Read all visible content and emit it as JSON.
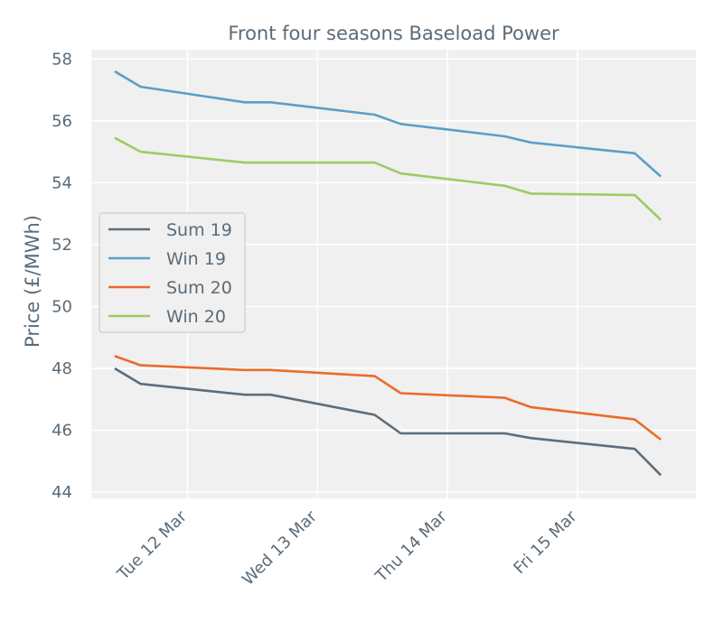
{
  "chart_data": {
    "type": "line",
    "title": "Front four seasons Baseload Power",
    "xlabel": "",
    "ylabel": "Price (£/MWh)",
    "ylim": [
      43.8,
      58.3
    ],
    "yticks": [
      44,
      46,
      48,
      50,
      52,
      54,
      56,
      58
    ],
    "xlim": [
      -0.18,
      4.47
    ],
    "xticks": [
      {
        "pos": 0.56,
        "label": "Tue 12 Mar"
      },
      {
        "pos": 1.56,
        "label": "Wed 13 Mar"
      },
      {
        "pos": 2.56,
        "label": "Thu 14 Mar"
      },
      {
        "pos": 3.56,
        "label": "Fri 15 Mar"
      }
    ],
    "x": [
      0,
      0.2,
      1.0,
      1.2,
      2.0,
      2.2,
      3.0,
      3.2,
      4.0,
      4.2
    ],
    "grid": true,
    "legend_position": "center-left",
    "series": [
      {
        "name": "Sum 19",
        "color": "#5d6d7b",
        "values": [
          48.0,
          47.5,
          47.15,
          47.15,
          46.5,
          45.9,
          45.9,
          45.75,
          45.4,
          44.55
        ]
      },
      {
        "name": "Win 19",
        "color": "#5b9fc6",
        "values": [
          57.6,
          57.1,
          56.6,
          56.6,
          56.2,
          55.9,
          55.5,
          55.3,
          54.95,
          54.2
        ]
      },
      {
        "name": "Sum 20",
        "color": "#ec6a2b",
        "values": [
          48.4,
          48.1,
          47.95,
          47.95,
          47.75,
          47.2,
          47.05,
          46.75,
          46.35,
          45.7
        ]
      },
      {
        "name": "Win 20",
        "color": "#9ccc65",
        "values": [
          55.45,
          55.0,
          54.65,
          54.65,
          54.65,
          54.3,
          53.9,
          53.65,
          53.6,
          52.8
        ]
      }
    ]
  }
}
